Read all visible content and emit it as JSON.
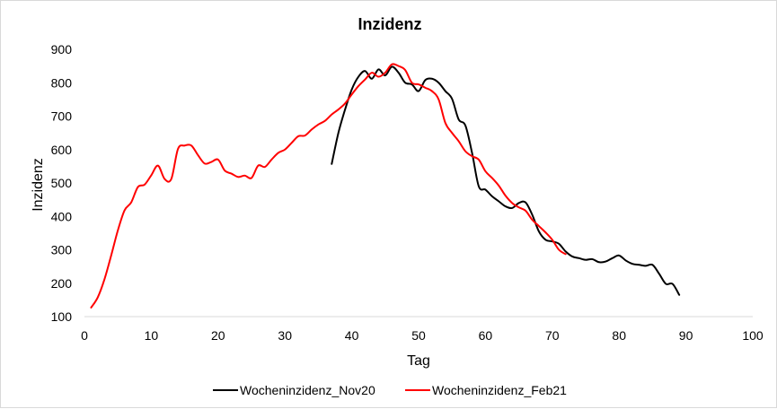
{
  "chart_data": {
    "type": "line",
    "title": "Inzidenz",
    "xlabel": "Tag",
    "ylabel": "Inzidenz",
    "xlim": [
      0,
      100
    ],
    "ylim": [
      100,
      900
    ],
    "xticks": [
      0,
      10,
      20,
      30,
      40,
      50,
      60,
      70,
      80,
      90,
      100
    ],
    "yticks": [
      100,
      200,
      300,
      400,
      500,
      600,
      700,
      800,
      900
    ],
    "grid": false,
    "legend_position": "bottom",
    "series": [
      {
        "name": "Wocheninzidenz_Nov20",
        "color": "#000000",
        "x": [
          37,
          38,
          39,
          40,
          41,
          42,
          43,
          44,
          45,
          46,
          47,
          48,
          49,
          50,
          51,
          52,
          53,
          54,
          55,
          56,
          57,
          58,
          59,
          60,
          61,
          62,
          63,
          64,
          65,
          66,
          67,
          68,
          69,
          70,
          71,
          72,
          73,
          74,
          75,
          76,
          77,
          78,
          79,
          80,
          81,
          82,
          83,
          84,
          85,
          86,
          87,
          88,
          89
        ],
        "y": [
          557,
          650,
          720,
          780,
          818,
          835,
          812,
          840,
          822,
          848,
          830,
          800,
          795,
          775,
          808,
          812,
          800,
          775,
          752,
          690,
          672,
          590,
          490,
          480,
          460,
          445,
          430,
          425,
          440,
          442,
          405,
          355,
          330,
          325,
          318,
          295,
          280,
          275,
          270,
          272,
          263,
          265,
          275,
          283,
          268,
          258,
          255,
          252,
          255,
          228,
          198,
          198,
          165
        ]
      },
      {
        "name": "Wocheninzidenz_Feb21",
        "color": "#ff0000",
        "x": [
          1,
          2,
          3,
          4,
          5,
          6,
          7,
          8,
          9,
          10,
          11,
          12,
          13,
          14,
          15,
          16,
          17,
          18,
          19,
          20,
          21,
          22,
          23,
          24,
          25,
          26,
          27,
          28,
          29,
          30,
          31,
          32,
          33,
          34,
          35,
          36,
          37,
          38,
          39,
          40,
          41,
          42,
          43,
          44,
          45,
          46,
          47,
          48,
          49,
          50,
          51,
          52,
          53,
          54,
          55,
          56,
          57,
          58,
          59,
          60,
          61,
          62,
          63,
          64,
          65,
          66,
          67,
          68,
          69,
          70,
          71,
          72
        ],
        "y": [
          127,
          158,
          212,
          283,
          358,
          418,
          442,
          488,
          495,
          523,
          552,
          512,
          512,
          602,
          612,
          612,
          583,
          558,
          563,
          570,
          537,
          528,
          518,
          522,
          515,
          552,
          548,
          570,
          590,
          600,
          620,
          640,
          642,
          660,
          675,
          686,
          705,
          720,
          738,
          765,
          790,
          810,
          830,
          818,
          830,
          855,
          850,
          838,
          800,
          795,
          785,
          775,
          750,
          680,
          650,
          625,
          595,
          580,
          570,
          535,
          515,
          492,
          462,
          440,
          427,
          417,
          390,
          371,
          352,
          330,
          300,
          287
        ]
      }
    ]
  }
}
